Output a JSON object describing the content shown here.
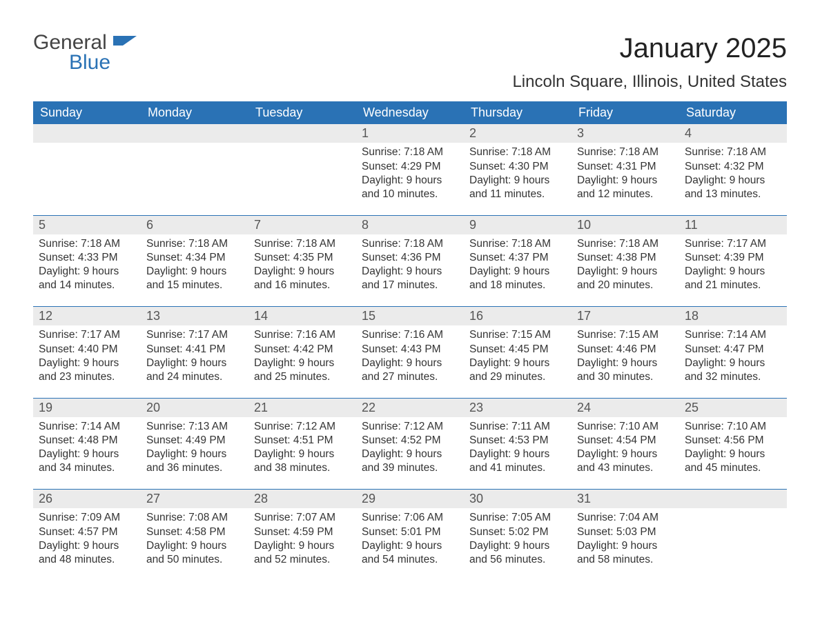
{
  "logo": {
    "general": "General",
    "blue": "Blue"
  },
  "title": "January 2025",
  "location": "Lincoln Square, Illinois, United States",
  "colors": {
    "header_bg": "#2a72b5",
    "header_text": "#ffffff",
    "daynum_bg": "#ebebeb",
    "daynum_text": "#555555",
    "body_text": "#333333",
    "rule": "#2a72b5",
    "page_bg": "#ffffff",
    "logo_gray": "#444444",
    "logo_blue": "#2a72b5"
  },
  "typography": {
    "title_fontsize": 40,
    "location_fontsize": 24,
    "weekday_fontsize": 18,
    "daynum_fontsize": 18,
    "body_fontsize": 15.5,
    "logo_fontsize": 30,
    "font_family": "Arial"
  },
  "weekdays": [
    "Sunday",
    "Monday",
    "Tuesday",
    "Wednesday",
    "Thursday",
    "Friday",
    "Saturday"
  ],
  "weeks": [
    [
      null,
      null,
      null,
      {
        "n": "1",
        "sr": "Sunrise: 7:18 AM",
        "ss": "Sunset: 4:29 PM",
        "d1": "Daylight: 9 hours",
        "d2": "and 10 minutes."
      },
      {
        "n": "2",
        "sr": "Sunrise: 7:18 AM",
        "ss": "Sunset: 4:30 PM",
        "d1": "Daylight: 9 hours",
        "d2": "and 11 minutes."
      },
      {
        "n": "3",
        "sr": "Sunrise: 7:18 AM",
        "ss": "Sunset: 4:31 PM",
        "d1": "Daylight: 9 hours",
        "d2": "and 12 minutes."
      },
      {
        "n": "4",
        "sr": "Sunrise: 7:18 AM",
        "ss": "Sunset: 4:32 PM",
        "d1": "Daylight: 9 hours",
        "d2": "and 13 minutes."
      }
    ],
    [
      {
        "n": "5",
        "sr": "Sunrise: 7:18 AM",
        "ss": "Sunset: 4:33 PM",
        "d1": "Daylight: 9 hours",
        "d2": "and 14 minutes."
      },
      {
        "n": "6",
        "sr": "Sunrise: 7:18 AM",
        "ss": "Sunset: 4:34 PM",
        "d1": "Daylight: 9 hours",
        "d2": "and 15 minutes."
      },
      {
        "n": "7",
        "sr": "Sunrise: 7:18 AM",
        "ss": "Sunset: 4:35 PM",
        "d1": "Daylight: 9 hours",
        "d2": "and 16 minutes."
      },
      {
        "n": "8",
        "sr": "Sunrise: 7:18 AM",
        "ss": "Sunset: 4:36 PM",
        "d1": "Daylight: 9 hours",
        "d2": "and 17 minutes."
      },
      {
        "n": "9",
        "sr": "Sunrise: 7:18 AM",
        "ss": "Sunset: 4:37 PM",
        "d1": "Daylight: 9 hours",
        "d2": "and 18 minutes."
      },
      {
        "n": "10",
        "sr": "Sunrise: 7:18 AM",
        "ss": "Sunset: 4:38 PM",
        "d1": "Daylight: 9 hours",
        "d2": "and 20 minutes."
      },
      {
        "n": "11",
        "sr": "Sunrise: 7:17 AM",
        "ss": "Sunset: 4:39 PM",
        "d1": "Daylight: 9 hours",
        "d2": "and 21 minutes."
      }
    ],
    [
      {
        "n": "12",
        "sr": "Sunrise: 7:17 AM",
        "ss": "Sunset: 4:40 PM",
        "d1": "Daylight: 9 hours",
        "d2": "and 23 minutes."
      },
      {
        "n": "13",
        "sr": "Sunrise: 7:17 AM",
        "ss": "Sunset: 4:41 PM",
        "d1": "Daylight: 9 hours",
        "d2": "and 24 minutes."
      },
      {
        "n": "14",
        "sr": "Sunrise: 7:16 AM",
        "ss": "Sunset: 4:42 PM",
        "d1": "Daylight: 9 hours",
        "d2": "and 25 minutes."
      },
      {
        "n": "15",
        "sr": "Sunrise: 7:16 AM",
        "ss": "Sunset: 4:43 PM",
        "d1": "Daylight: 9 hours",
        "d2": "and 27 minutes."
      },
      {
        "n": "16",
        "sr": "Sunrise: 7:15 AM",
        "ss": "Sunset: 4:45 PM",
        "d1": "Daylight: 9 hours",
        "d2": "and 29 minutes."
      },
      {
        "n": "17",
        "sr": "Sunrise: 7:15 AM",
        "ss": "Sunset: 4:46 PM",
        "d1": "Daylight: 9 hours",
        "d2": "and 30 minutes."
      },
      {
        "n": "18",
        "sr": "Sunrise: 7:14 AM",
        "ss": "Sunset: 4:47 PM",
        "d1": "Daylight: 9 hours",
        "d2": "and 32 minutes."
      }
    ],
    [
      {
        "n": "19",
        "sr": "Sunrise: 7:14 AM",
        "ss": "Sunset: 4:48 PM",
        "d1": "Daylight: 9 hours",
        "d2": "and 34 minutes."
      },
      {
        "n": "20",
        "sr": "Sunrise: 7:13 AM",
        "ss": "Sunset: 4:49 PM",
        "d1": "Daylight: 9 hours",
        "d2": "and 36 minutes."
      },
      {
        "n": "21",
        "sr": "Sunrise: 7:12 AM",
        "ss": "Sunset: 4:51 PM",
        "d1": "Daylight: 9 hours",
        "d2": "and 38 minutes."
      },
      {
        "n": "22",
        "sr": "Sunrise: 7:12 AM",
        "ss": "Sunset: 4:52 PM",
        "d1": "Daylight: 9 hours",
        "d2": "and 39 minutes."
      },
      {
        "n": "23",
        "sr": "Sunrise: 7:11 AM",
        "ss": "Sunset: 4:53 PM",
        "d1": "Daylight: 9 hours",
        "d2": "and 41 minutes."
      },
      {
        "n": "24",
        "sr": "Sunrise: 7:10 AM",
        "ss": "Sunset: 4:54 PM",
        "d1": "Daylight: 9 hours",
        "d2": "and 43 minutes."
      },
      {
        "n": "25",
        "sr": "Sunrise: 7:10 AM",
        "ss": "Sunset: 4:56 PM",
        "d1": "Daylight: 9 hours",
        "d2": "and 45 minutes."
      }
    ],
    [
      {
        "n": "26",
        "sr": "Sunrise: 7:09 AM",
        "ss": "Sunset: 4:57 PM",
        "d1": "Daylight: 9 hours",
        "d2": "and 48 minutes."
      },
      {
        "n": "27",
        "sr": "Sunrise: 7:08 AM",
        "ss": "Sunset: 4:58 PM",
        "d1": "Daylight: 9 hours",
        "d2": "and 50 minutes."
      },
      {
        "n": "28",
        "sr": "Sunrise: 7:07 AM",
        "ss": "Sunset: 4:59 PM",
        "d1": "Daylight: 9 hours",
        "d2": "and 52 minutes."
      },
      {
        "n": "29",
        "sr": "Sunrise: 7:06 AM",
        "ss": "Sunset: 5:01 PM",
        "d1": "Daylight: 9 hours",
        "d2": "and 54 minutes."
      },
      {
        "n": "30",
        "sr": "Sunrise: 7:05 AM",
        "ss": "Sunset: 5:02 PM",
        "d1": "Daylight: 9 hours",
        "d2": "and 56 minutes."
      },
      {
        "n": "31",
        "sr": "Sunrise: 7:04 AM",
        "ss": "Sunset: 5:03 PM",
        "d1": "Daylight: 9 hours",
        "d2": "and 58 minutes."
      },
      null
    ]
  ]
}
